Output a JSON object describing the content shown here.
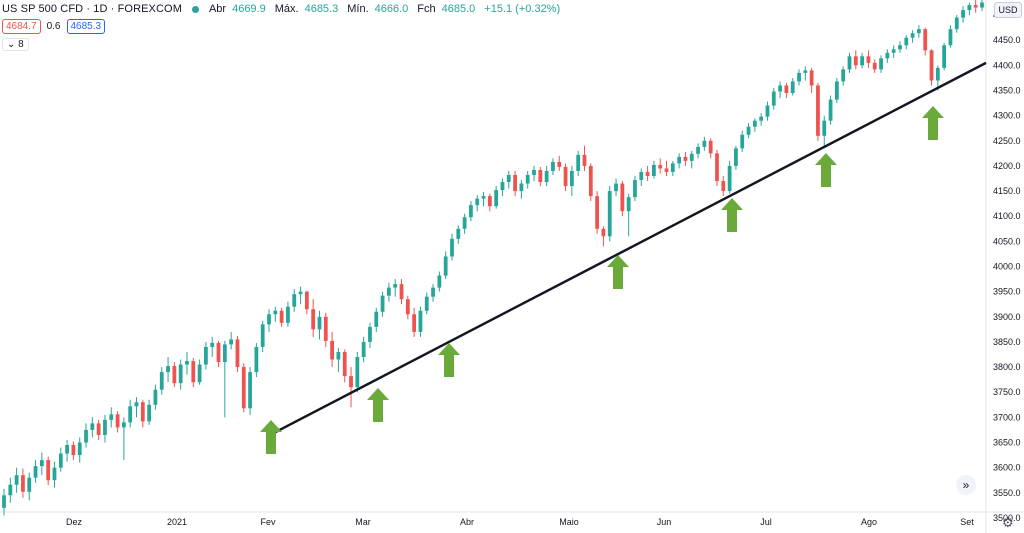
{
  "header": {
    "symbol": "US SP 500 CFD · 1D · FOREXCOM",
    "open_label": "Abr",
    "open_value": "4669.9",
    "high_label": "Máx.",
    "high_value": "4685.3",
    "low_label": "Mín.",
    "low_value": "4666.0",
    "close_label": "Fch",
    "close_value": "4685.0",
    "change": "+15.1 (+0.32%)",
    "status_color": "#26a69a"
  },
  "quote": {
    "bid": "4684.7",
    "spread": "0.6",
    "ask": "4685.3",
    "indicators_count": "8",
    "chevron_icon": "chevron-down-icon"
  },
  "axis": {
    "currency": "USD",
    "forward_icon": "double-chevron-right-icon",
    "settings_icon": "gear-icon"
  },
  "chart_data": {
    "type": "candlestick",
    "title": "",
    "xlabel": "",
    "ylabel": "",
    "ylim": [
      3470,
      4530
    ],
    "y_ticks": [
      3500,
      3550,
      3600,
      3650,
      3700,
      3750,
      3800,
      3850,
      3900,
      3950,
      4000,
      4050,
      4100,
      4150,
      4200,
      4250,
      4300,
      4350,
      4400,
      4450,
      4500
    ],
    "x_tick_labels": [
      "Dez",
      "2021",
      "Fev",
      "Mar",
      "Abr",
      "Maio",
      "Jun",
      "Jul",
      "Ago",
      "Set"
    ],
    "colors": {
      "up": "#26a69a",
      "down": "#ef5350",
      "trendline": "#131722",
      "arrows": "#6aaa3a"
    },
    "candles": [
      [
        3520,
        3558,
        3505,
        3545
      ],
      [
        3545,
        3580,
        3530,
        3566
      ],
      [
        3566,
        3600,
        3550,
        3585
      ],
      [
        3585,
        3598,
        3540,
        3552
      ],
      [
        3552,
        3590,
        3535,
        3580
      ],
      [
        3580,
        3615,
        3570,
        3603
      ],
      [
        3603,
        3630,
        3585,
        3615
      ],
      [
        3615,
        3622,
        3565,
        3575
      ],
      [
        3575,
        3612,
        3560,
        3600
      ],
      [
        3600,
        3640,
        3592,
        3628
      ],
      [
        3628,
        3655,
        3612,
        3645
      ],
      [
        3645,
        3652,
        3615,
        3625
      ],
      [
        3625,
        3660,
        3610,
        3650
      ],
      [
        3650,
        3688,
        3640,
        3675
      ],
      [
        3675,
        3700,
        3660,
        3688
      ],
      [
        3688,
        3695,
        3655,
        3665
      ],
      [
        3665,
        3705,
        3650,
        3695
      ],
      [
        3695,
        3720,
        3680,
        3706
      ],
      [
        3706,
        3712,
        3670,
        3680
      ],
      [
        3680,
        3700,
        3615,
        3690
      ],
      [
        3690,
        3735,
        3680,
        3722
      ],
      [
        3722,
        3740,
        3700,
        3730
      ],
      [
        3730,
        3735,
        3680,
        3692
      ],
      [
        3692,
        3735,
        3685,
        3725
      ],
      [
        3725,
        3765,
        3715,
        3755
      ],
      [
        3755,
        3800,
        3745,
        3790
      ],
      [
        3790,
        3820,
        3770,
        3802
      ],
      [
        3802,
        3810,
        3760,
        3768
      ],
      [
        3768,
        3815,
        3755,
        3805
      ],
      [
        3805,
        3830,
        3785,
        3812
      ],
      [
        3812,
        3818,
        3760,
        3770
      ],
      [
        3770,
        3815,
        3765,
        3805
      ],
      [
        3805,
        3850,
        3795,
        3840
      ],
      [
        3840,
        3860,
        3820,
        3848
      ],
      [
        3848,
        3852,
        3800,
        3810
      ],
      [
        3810,
        3852,
        3700,
        3845
      ],
      [
        3845,
        3870,
        3835,
        3855
      ],
      [
        3855,
        3862,
        3790,
        3800
      ],
      [
        3800,
        3808,
        3710,
        3718
      ],
      [
        3718,
        3800,
        3705,
        3790
      ],
      [
        3790,
        3848,
        3780,
        3840
      ],
      [
        3840,
        3892,
        3830,
        3885
      ],
      [
        3885,
        3915,
        3870,
        3905
      ],
      [
        3905,
        3920,
        3890,
        3912
      ],
      [
        3912,
        3918,
        3880,
        3888
      ],
      [
        3888,
        3930,
        3880,
        3920
      ],
      [
        3920,
        3955,
        3910,
        3945
      ],
      [
        3945,
        3960,
        3925,
        3950
      ],
      [
        3950,
        3952,
        3905,
        3915
      ],
      [
        3915,
        3935,
        3860,
        3875
      ],
      [
        3875,
        3912,
        3855,
        3900
      ],
      [
        3900,
        3908,
        3840,
        3852
      ],
      [
        3852,
        3870,
        3800,
        3815
      ],
      [
        3815,
        3838,
        3790,
        3830
      ],
      [
        3830,
        3835,
        3770,
        3782
      ],
      [
        3782,
        3800,
        3720,
        3760
      ],
      [
        3760,
        3830,
        3750,
        3820
      ],
      [
        3820,
        3860,
        3810,
        3850
      ],
      [
        3850,
        3888,
        3838,
        3880
      ],
      [
        3880,
        3918,
        3870,
        3910
      ],
      [
        3910,
        3950,
        3900,
        3942
      ],
      [
        3942,
        3968,
        3930,
        3958
      ],
      [
        3958,
        3975,
        3940,
        3965
      ],
      [
        3965,
        3975,
        3925,
        3935
      ],
      [
        3935,
        3942,
        3895,
        3905
      ],
      [
        3905,
        3918,
        3860,
        3870
      ],
      [
        3870,
        3920,
        3860,
        3912
      ],
      [
        3912,
        3948,
        3905,
        3940
      ],
      [
        3940,
        3965,
        3930,
        3958
      ],
      [
        3958,
        3990,
        3950,
        3982
      ],
      [
        3982,
        4030,
        3975,
        4020
      ],
      [
        4020,
        4065,
        4012,
        4055
      ],
      [
        4055,
        4082,
        4045,
        4075
      ],
      [
        4075,
        4105,
        4065,
        4098
      ],
      [
        4098,
        4130,
        4090,
        4122
      ],
      [
        4122,
        4142,
        4110,
        4135
      ],
      [
        4135,
        4148,
        4120,
        4140
      ],
      [
        4140,
        4145,
        4110,
        4120
      ],
      [
        4120,
        4160,
        4115,
        4152
      ],
      [
        4152,
        4175,
        4140,
        4168
      ],
      [
        4168,
        4190,
        4155,
        4182
      ],
      [
        4182,
        4190,
        4140,
        4150
      ],
      [
        4150,
        4172,
        4135,
        4165
      ],
      [
        4165,
        4190,
        4155,
        4182
      ],
      [
        4182,
        4200,
        4170,
        4192
      ],
      [
        4192,
        4198,
        4160,
        4168
      ],
      [
        4168,
        4200,
        4160,
        4190
      ],
      [
        4190,
        4215,
        4182,
        4208
      ],
      [
        4208,
        4220,
        4190,
        4198
      ],
      [
        4198,
        4205,
        4150,
        4160
      ],
      [
        4160,
        4200,
        4140,
        4190
      ],
      [
        4190,
        4230,
        4180,
        4222
      ],
      [
        4222,
        4240,
        4190,
        4200
      ],
      [
        4200,
        4205,
        4130,
        4140
      ],
      [
        4140,
        4150,
        4065,
        4075
      ],
      [
        4075,
        4080,
        4040,
        4060
      ],
      [
        4060,
        4160,
        4050,
        4150
      ],
      [
        4150,
        4175,
        4140,
        4165
      ],
      [
        4165,
        4170,
        4100,
        4110
      ],
      [
        4110,
        4145,
        4060,
        4138
      ],
      [
        4138,
        4180,
        4130,
        4172
      ],
      [
        4172,
        4195,
        4160,
        4188
      ],
      [
        4188,
        4200,
        4170,
        4180
      ],
      [
        4180,
        4210,
        4175,
        4202
      ],
      [
        4202,
        4215,
        4185,
        4195
      ],
      [
        4195,
        4210,
        4180,
        4188
      ],
      [
        4188,
        4210,
        4180,
        4205
      ],
      [
        4205,
        4225,
        4195,
        4218
      ],
      [
        4218,
        4228,
        4200,
        4210
      ],
      [
        4210,
        4230,
        4195,
        4224
      ],
      [
        4224,
        4245,
        4215,
        4238
      ],
      [
        4238,
        4258,
        4230,
        4250
      ],
      [
        4250,
        4255,
        4215,
        4225
      ],
      [
        4225,
        4232,
        4160,
        4170
      ],
      [
        4170,
        4180,
        4140,
        4150
      ],
      [
        4150,
        4210,
        4145,
        4200
      ],
      [
        4200,
        4240,
        4192,
        4235
      ],
      [
        4235,
        4270,
        4228,
        4262
      ],
      [
        4262,
        4285,
        4255,
        4278
      ],
      [
        4278,
        4295,
        4268,
        4290
      ],
      [
        4290,
        4305,
        4280,
        4298
      ],
      [
        4298,
        4328,
        4290,
        4320
      ],
      [
        4320,
        4355,
        4312,
        4348
      ],
      [
        4348,
        4368,
        4335,
        4360
      ],
      [
        4360,
        4365,
        4335,
        4345
      ],
      [
        4345,
        4375,
        4340,
        4368
      ],
      [
        4368,
        4392,
        4360,
        4385
      ],
      [
        4385,
        4398,
        4370,
        4390
      ],
      [
        4390,
        4395,
        4345,
        4360
      ],
      [
        4360,
        4365,
        4250,
        4260
      ],
      [
        4260,
        4300,
        4235,
        4290
      ],
      [
        4290,
        4340,
        4282,
        4332
      ],
      [
        4332,
        4375,
        4325,
        4368
      ],
      [
        4368,
        4398,
        4360,
        4392
      ],
      [
        4392,
        4425,
        4385,
        4418
      ],
      [
        4418,
        4430,
        4392,
        4400
      ],
      [
        4400,
        4425,
        4394,
        4418
      ],
      [
        4418,
        4430,
        4395,
        4405
      ],
      [
        4405,
        4412,
        4385,
        4392
      ],
      [
        4392,
        4420,
        4385,
        4414
      ],
      [
        4414,
        4432,
        4405,
        4425
      ],
      [
        4425,
        4440,
        4415,
        4432
      ],
      [
        4432,
        4448,
        4425,
        4440
      ],
      [
        4440,
        4460,
        4432,
        4455
      ],
      [
        4455,
        4470,
        4445,
        4464
      ],
      [
        4464,
        4480,
        4455,
        4472
      ],
      [
        4472,
        4475,
        4420,
        4430
      ],
      [
        4430,
        4432,
        4360,
        4370
      ],
      [
        4370,
        4400,
        4350,
        4395
      ],
      [
        4395,
        4445,
        4390,
        4440
      ],
      [
        4440,
        4480,
        4435,
        4472
      ],
      [
        4472,
        4500,
        4465,
        4495
      ],
      [
        4495,
        4518,
        4485,
        4510
      ],
      [
        4510,
        4525,
        4500,
        4520
      ],
      [
        4520,
        4530,
        4505,
        4515
      ],
      [
        4515,
        4530,
        4508,
        4525
      ]
    ],
    "trendline": [
      [
        3665,
        4405
      ]
    ],
    "arrows": 7
  }
}
